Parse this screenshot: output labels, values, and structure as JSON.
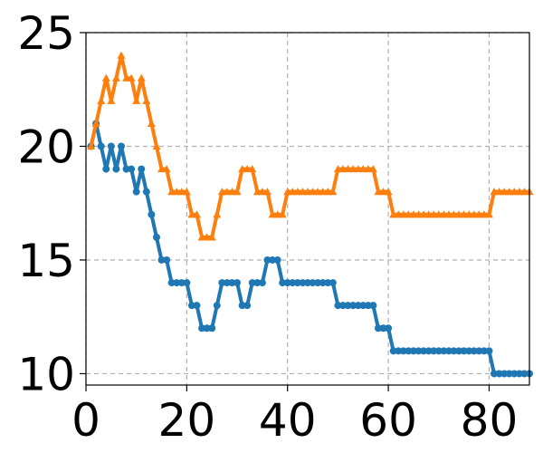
{
  "chart_data": {
    "type": "line",
    "xlim": [
      0,
      88
    ],
    "ylim": [
      9.5,
      25
    ],
    "x_ticks": [
      0,
      20,
      40,
      60,
      80
    ],
    "y_ticks": [
      10,
      15,
      20,
      25
    ],
    "x_tick_labels": [
      "0",
      "20",
      "40",
      "60",
      "80"
    ],
    "y_tick_labels": [
      "10",
      "15",
      "20",
      "25"
    ],
    "grid": true,
    "legend": "none",
    "series": [
      {
        "color": "#1f77b4",
        "marker": "circle",
        "x": [
          1,
          2,
          3,
          4,
          5,
          6,
          7,
          8,
          9,
          10,
          11,
          12,
          13,
          14,
          15,
          16,
          17,
          18,
          19,
          20,
          21,
          22,
          23,
          24,
          25,
          26,
          27,
          28,
          29,
          30,
          31,
          32,
          33,
          34,
          35,
          36,
          37,
          38,
          39,
          40,
          41,
          42,
          43,
          44,
          45,
          46,
          47,
          48,
          49,
          50,
          51,
          52,
          53,
          54,
          55,
          56,
          57,
          58,
          59,
          60,
          61,
          62,
          63,
          64,
          65,
          66,
          67,
          68,
          69,
          70,
          71,
          72,
          73,
          74,
          75,
          76,
          77,
          78,
          79,
          80,
          81,
          82,
          83,
          84,
          85,
          86,
          87,
          88
        ],
        "y": [
          20,
          21,
          20,
          19,
          20,
          19,
          20,
          19,
          19,
          18,
          19,
          18,
          17,
          16,
          15,
          15,
          14,
          14,
          14,
          14,
          13,
          13,
          12,
          12,
          12,
          13,
          14,
          14,
          14,
          14,
          13,
          13,
          14,
          14,
          14,
          15,
          15,
          15,
          14,
          14,
          14,
          14,
          14,
          14,
          14,
          14,
          14,
          14,
          14,
          13,
          13,
          13,
          13,
          13,
          13,
          13,
          13,
          12,
          12,
          12,
          11,
          11,
          11,
          11,
          11,
          11,
          11,
          11,
          11,
          11,
          11,
          11,
          11,
          11,
          11,
          11,
          11,
          11,
          11,
          11,
          10,
          10,
          10,
          10,
          10,
          10,
          10,
          10
        ]
      },
      {
        "color": "#ff7f0e",
        "marker": "triangle",
        "x": [
          1,
          2,
          3,
          4,
          5,
          6,
          7,
          8,
          9,
          10,
          11,
          12,
          13,
          14,
          15,
          16,
          17,
          18,
          19,
          20,
          21,
          22,
          23,
          24,
          25,
          26,
          27,
          28,
          29,
          30,
          31,
          32,
          33,
          34,
          35,
          36,
          37,
          38,
          39,
          40,
          41,
          42,
          43,
          44,
          45,
          46,
          47,
          48,
          49,
          50,
          51,
          52,
          53,
          54,
          55,
          56,
          57,
          58,
          59,
          60,
          61,
          62,
          63,
          64,
          65,
          66,
          67,
          68,
          69,
          70,
          71,
          72,
          73,
          74,
          75,
          76,
          77,
          78,
          79,
          80,
          81,
          82,
          83,
          84,
          85,
          86,
          87,
          88
        ],
        "y": [
          20,
          21,
          22,
          23,
          22,
          23,
          24,
          23,
          23,
          22,
          23,
          22,
          21,
          20,
          19,
          19,
          18,
          18,
          18,
          18,
          17,
          17,
          16,
          16,
          16,
          17,
          18,
          18,
          18,
          18,
          19,
          19,
          19,
          18,
          18,
          18,
          17,
          17,
          17,
          18,
          18,
          18,
          18,
          18,
          18,
          18,
          18,
          18,
          18,
          19,
          19,
          19,
          19,
          19,
          19,
          19,
          19,
          18,
          18,
          18,
          17,
          17,
          17,
          17,
          17,
          17,
          17,
          17,
          17,
          17,
          17,
          17,
          17,
          17,
          17,
          17,
          17,
          17,
          17,
          17,
          18,
          18,
          18,
          18,
          18,
          18,
          18,
          18
        ]
      }
    ]
  }
}
